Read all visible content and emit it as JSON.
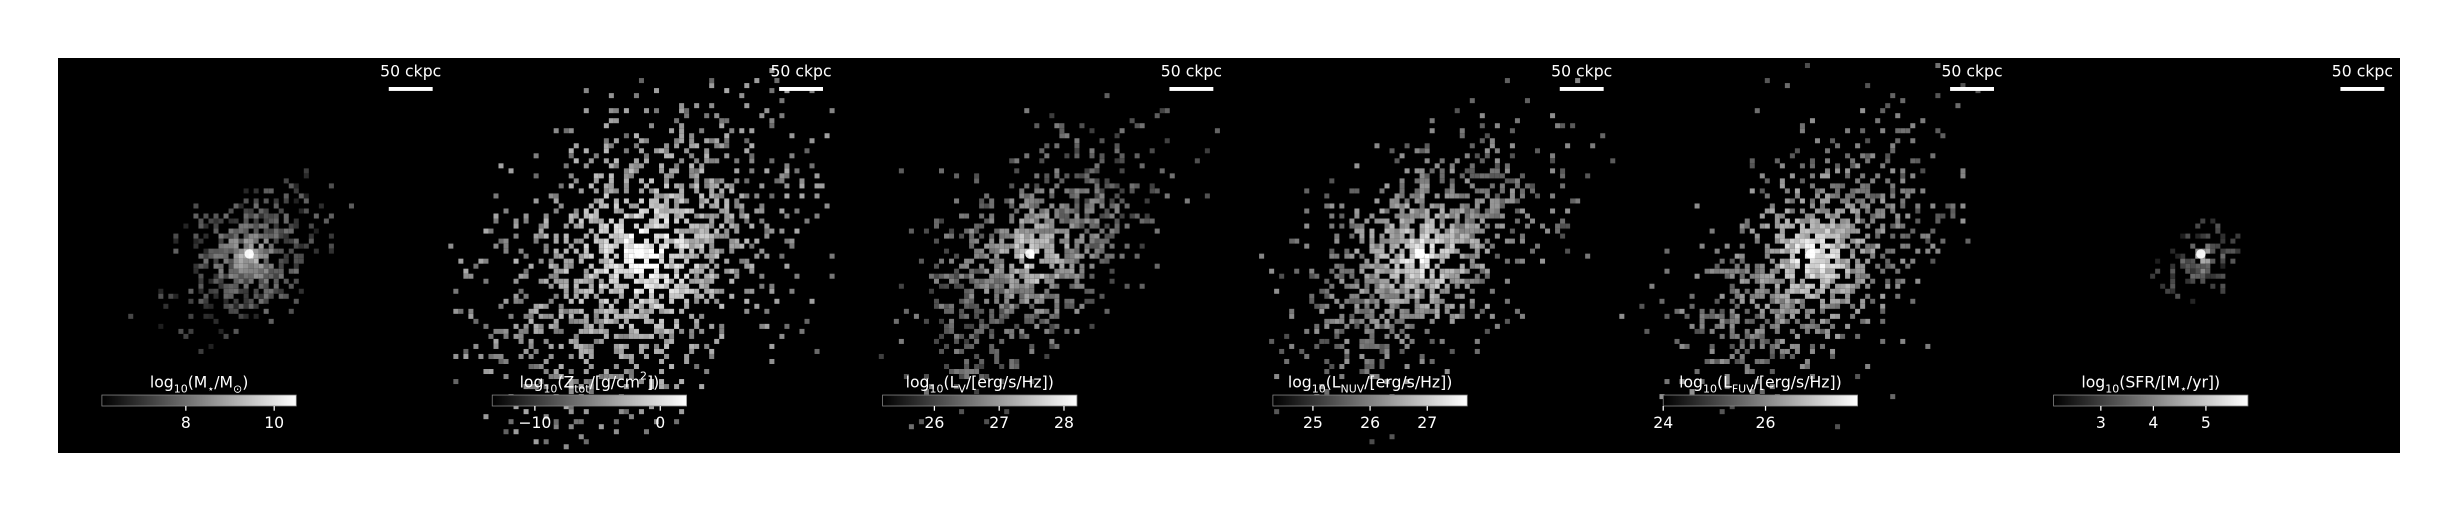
{
  "chart_data": [
    {
      "type": "image",
      "scalebar": "50 ckpc",
      "colorbar_label": [
        {
          "text": "log"
        },
        {
          "text": "10",
          "sub": true
        },
        {
          "text": "(M"
        },
        {
          "text": "⋆",
          "sub": true
        },
        {
          "text": "/M"
        },
        {
          "text": "⊙",
          "sub": true
        },
        {
          "text": ")"
        }
      ],
      "clim": [
        6.1,
        10.5
      ],
      "cticks": [
        8,
        10
      ]
    },
    {
      "type": "image",
      "scalebar": "50 ckpc",
      "colorbar_label": [
        {
          "text": "log"
        },
        {
          "text": "10",
          "sub": true
        },
        {
          "text": "(Z"
        },
        {
          "text": "tot",
          "sub": true
        },
        {
          "text": "/[g/cm"
        },
        {
          "text": "2",
          "sup": true
        },
        {
          "text": "])"
        }
      ],
      "clim": [
        -13.4,
        2.1
      ],
      "cticks": [
        {
          "value": -10,
          "label": "−10"
        },
        0
      ]
    },
    {
      "type": "image",
      "scalebar": "50 ckpc",
      "colorbar_label": [
        {
          "text": "log"
        },
        {
          "text": "10",
          "sub": true
        },
        {
          "text": "(L"
        },
        {
          "text": "V",
          "sub": true
        },
        {
          "text": "/[erg/s/Hz])"
        }
      ],
      "clim": [
        25.2,
        28.2
      ],
      "cticks": [
        26,
        27,
        28
      ]
    },
    {
      "type": "image",
      "scalebar": "50 ckpc",
      "colorbar_label": [
        {
          "text": "log"
        },
        {
          "text": "10",
          "sub": true
        },
        {
          "text": "(L"
        },
        {
          "text": "NUV",
          "sub": true
        },
        {
          "text": "/[erg/s/Hz])"
        }
      ],
      "clim": [
        24.3,
        27.7
      ],
      "cticks": [
        25,
        26,
        27
      ]
    },
    {
      "type": "image",
      "scalebar": "50 ckpc",
      "colorbar_label": [
        {
          "text": "log"
        },
        {
          "text": "10",
          "sub": true
        },
        {
          "text": "(L"
        },
        {
          "text": "FUV",
          "sub": true
        },
        {
          "text": "/[erg/s/Hz])"
        }
      ],
      "clim": [
        24.0,
        27.8
      ],
      "cticks": [
        24,
        26
      ]
    },
    {
      "type": "image",
      "scalebar": "50 ckpc",
      "colorbar_label": [
        {
          "text": "log"
        },
        {
          "text": "10",
          "sub": true
        },
        {
          "text": "(SFR/[M"
        },
        {
          "text": "⋆",
          "sub": true
        },
        {
          "text": "/yr])"
        }
      ],
      "clim": [
        2.1,
        5.8
      ],
      "cticks": [
        3,
        4,
        5
      ]
    }
  ]
}
